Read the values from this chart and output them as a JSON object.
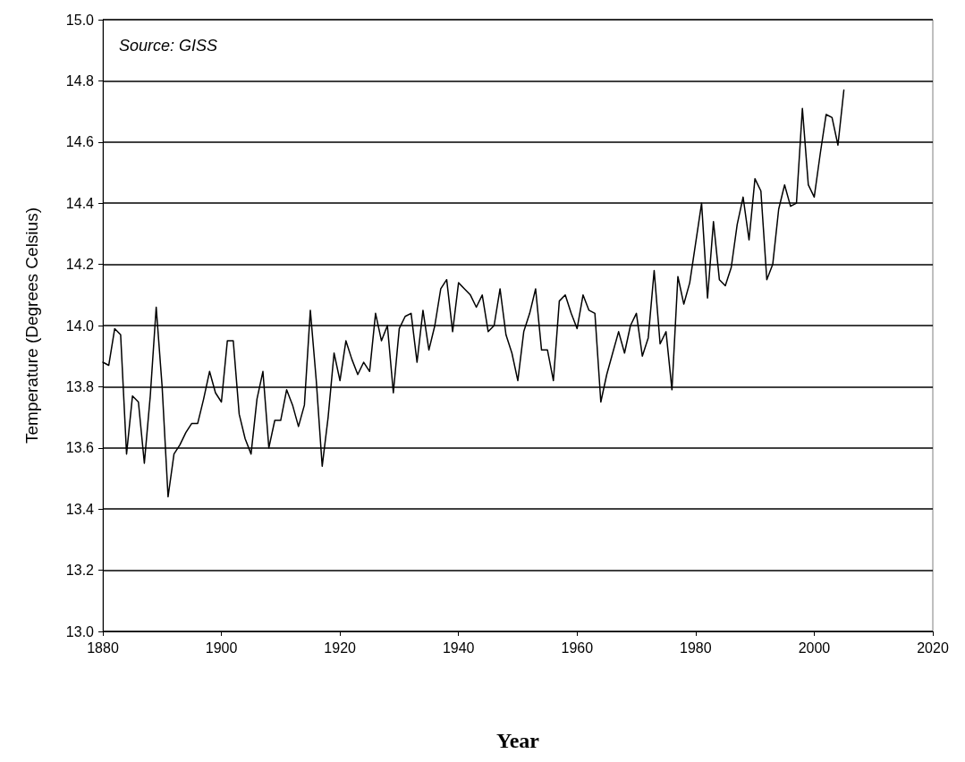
{
  "chart_data": {
    "type": "line",
    "xlabel": "Year",
    "ylabel": "Temperature (Degrees Celsius)",
    "annotations": [
      "Source: GISS"
    ],
    "x": [
      1880,
      1881,
      1882,
      1883,
      1884,
      1885,
      1886,
      1887,
      1888,
      1889,
      1890,
      1891,
      1892,
      1893,
      1894,
      1895,
      1896,
      1897,
      1898,
      1899,
      1900,
      1901,
      1902,
      1903,
      1904,
      1905,
      1906,
      1907,
      1908,
      1909,
      1910,
      1911,
      1912,
      1913,
      1914,
      1915,
      1916,
      1917,
      1918,
      1919,
      1920,
      1921,
      1922,
      1923,
      1924,
      1925,
      1926,
      1927,
      1928,
      1929,
      1930,
      1931,
      1932,
      1933,
      1934,
      1935,
      1936,
      1937,
      1938,
      1939,
      1940,
      1941,
      1942,
      1943,
      1944,
      1945,
      1946,
      1947,
      1948,
      1949,
      1950,
      1951,
      1952,
      1953,
      1954,
      1955,
      1956,
      1957,
      1958,
      1959,
      1960,
      1961,
      1962,
      1963,
      1964,
      1965,
      1966,
      1967,
      1968,
      1969,
      1970,
      1971,
      1972,
      1973,
      1974,
      1975,
      1976,
      1977,
      1978,
      1979,
      1980,
      1981,
      1982,
      1983,
      1984,
      1985,
      1986,
      1987,
      1988,
      1989,
      1990,
      1991,
      1992,
      1993,
      1994,
      1995,
      1996,
      1997,
      1998,
      1999,
      2000,
      2001,
      2002,
      2003,
      2004,
      2005
    ],
    "series": [
      {
        "color": "#000000",
        "values": [
          13.88,
          13.87,
          13.99,
          13.97,
          13.58,
          13.77,
          13.75,
          13.55,
          13.77,
          14.06,
          13.8,
          13.44,
          13.58,
          13.61,
          13.65,
          13.68,
          13.68,
          13.76,
          13.85,
          13.78,
          13.75,
          13.95,
          13.95,
          13.71,
          13.63,
          13.58,
          13.76,
          13.85,
          13.6,
          13.69,
          13.69,
          13.79,
          13.74,
          13.67,
          13.74,
          14.05,
          13.82,
          13.54,
          13.7,
          13.91,
          13.82,
          13.95,
          13.89,
          13.84,
          13.88,
          13.85,
          14.04,
          13.95,
          14.0,
          13.78,
          13.99,
          14.03,
          14.04,
          13.88,
          14.05,
          13.92,
          14.0,
          14.12,
          14.15,
          13.98,
          14.14,
          14.12,
          14.1,
          14.06,
          14.1,
          13.98,
          14.0,
          14.12,
          13.97,
          13.91,
          13.82,
          13.98,
          14.04,
          14.12,
          13.92,
          13.92,
          13.82,
          14.08,
          14.1,
          14.04,
          13.99,
          14.1,
          14.05,
          14.04,
          13.75,
          13.84,
          13.91,
          13.98,
          13.91,
          14.0,
          14.04,
          13.9,
          13.96,
          14.18,
          13.94,
          13.98,
          13.79,
          14.16,
          14.07,
          14.14,
          14.27,
          14.4,
          14.09,
          14.34,
          14.15,
          14.13,
          14.19,
          14.33,
          14.42,
          14.28,
          14.48,
          14.44,
          14.15,
          14.2,
          14.38,
          14.46,
          14.39,
          14.4,
          14.71,
          14.46,
          14.42,
          14.56,
          14.69,
          14.68,
          14.59,
          14.77
        ]
      }
    ],
    "xlim": [
      1880,
      2020
    ],
    "xticks": [
      1880,
      1900,
      1920,
      1940,
      1960,
      1980,
      2000,
      2020
    ],
    "ylim": [
      13.0,
      15.0
    ],
    "yticks": [
      {
        "value": 13.0,
        "label": "13.0"
      },
      {
        "value": 13.2,
        "label": "13.2"
      },
      {
        "value": 13.4,
        "label": "13.4"
      },
      {
        "value": 13.6,
        "label": "13.6"
      },
      {
        "value": 13.8,
        "label": "13.8"
      },
      {
        "value": 14.0,
        "label": "14.0"
      },
      {
        "value": 14.2,
        "label": "14.2"
      },
      {
        "value": 14.4,
        "label": "14.4"
      },
      {
        "value": 14.6,
        "label": "14.6"
      },
      {
        "value": 14.8,
        "label": "14.8"
      },
      {
        "value": 15.0,
        "label": "15.0"
      }
    ],
    "grid": "y",
    "marker": "none",
    "line_style": "solid"
  }
}
